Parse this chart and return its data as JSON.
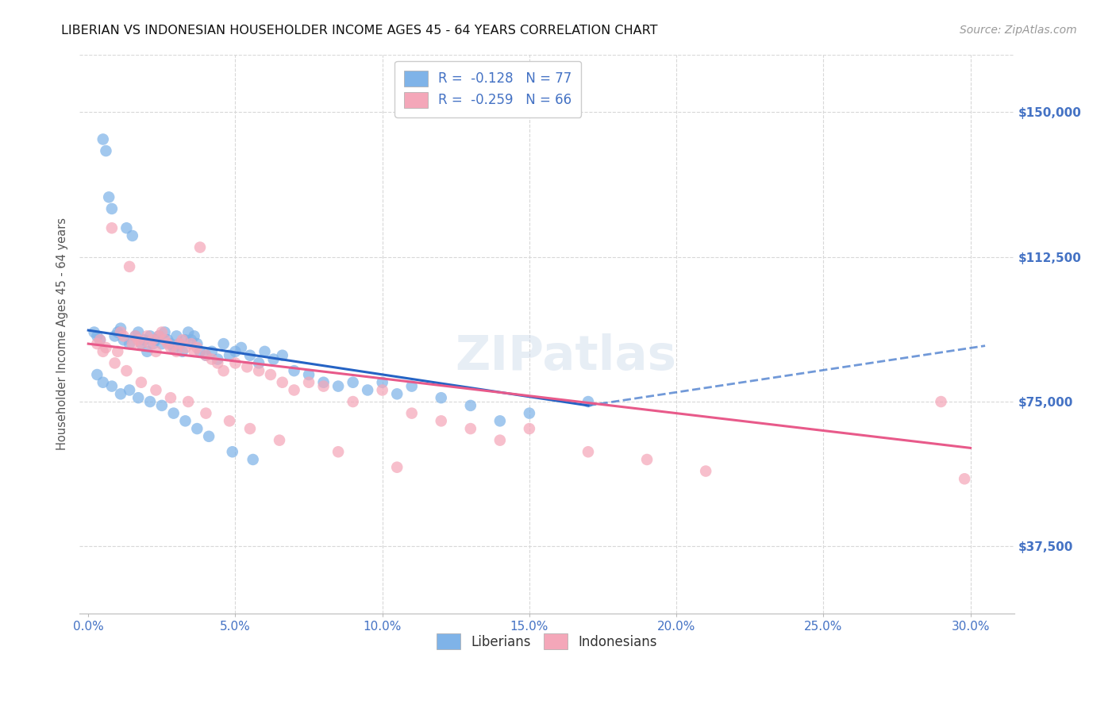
{
  "title": "LIBERIAN VS INDONESIAN HOUSEHOLDER INCOME AGES 45 - 64 YEARS CORRELATION CHART",
  "source": "Source: ZipAtlas.com",
  "ylabel": "Householder Income Ages 45 - 64 years",
  "xlabel_ticks": [
    "0.0%",
    "5.0%",
    "10.0%",
    "15.0%",
    "20.0%",
    "25.0%",
    "30.0%"
  ],
  "xlabel_vals": [
    0.0,
    5.0,
    10.0,
    15.0,
    20.0,
    25.0,
    30.0
  ],
  "ylim": [
    20000,
    165000
  ],
  "xlim": [
    -0.3,
    31.5
  ],
  "yticks": [
    37500,
    75000,
    112500,
    150000
  ],
  "ytick_labels": [
    "$37,500",
    "$75,000",
    "$112,500",
    "$150,000"
  ],
  "legend_R_liberian": "-0.128",
  "legend_N_liberian": "77",
  "legend_R_indonesian": "-0.259",
  "legend_N_indonesian": "66",
  "color_liberian": "#7fb3e8",
  "color_indonesian": "#f4a7b9",
  "color_line_liberian": "#2563c4",
  "color_line_indonesian": "#e85a8a",
  "color_title": "#111111",
  "color_source": "#999999",
  "color_axis_label": "#555555",
  "color_ytick": "#4472c4",
  "color_xtick": "#4472c4",
  "watermark": "ZIPatlas",
  "background_color": "#ffffff",
  "grid_color": "#d8d8d8",
  "liberian_x": [
    0.2,
    0.3,
    0.4,
    0.5,
    0.6,
    0.7,
    0.8,
    0.9,
    1.0,
    1.1,
    1.2,
    1.3,
    1.4,
    1.5,
    1.6,
    1.7,
    1.8,
    1.9,
    2.0,
    2.1,
    2.2,
    2.3,
    2.4,
    2.5,
    2.6,
    2.7,
    2.8,
    2.9,
    3.0,
    3.1,
    3.2,
    3.3,
    3.4,
    3.5,
    3.6,
    3.7,
    3.8,
    4.0,
    4.2,
    4.4,
    4.6,
    4.8,
    5.0,
    5.2,
    5.5,
    5.8,
    6.0,
    6.3,
    6.6,
    7.0,
    7.5,
    8.0,
    8.5,
    9.0,
    9.5,
    10.0,
    10.5,
    11.0,
    12.0,
    13.0,
    14.0,
    15.0,
    0.3,
    0.5,
    0.8,
    1.1,
    1.4,
    1.7,
    2.1,
    2.5,
    2.9,
    3.3,
    3.7,
    4.1,
    4.9,
    5.6,
    17.0
  ],
  "liberian_y": [
    93000,
    92000,
    91000,
    143000,
    140000,
    128000,
    125000,
    92000,
    93000,
    94000,
    91000,
    120000,
    90000,
    118000,
    92000,
    93000,
    90000,
    91000,
    88000,
    92000,
    90000,
    91000,
    92000,
    90000,
    93000,
    91000,
    90000,
    89000,
    92000,
    90000,
    88000,
    91000,
    93000,
    91000,
    92000,
    90000,
    88000,
    87000,
    88000,
    86000,
    90000,
    87000,
    88000,
    89000,
    87000,
    85000,
    88000,
    86000,
    87000,
    83000,
    82000,
    80000,
    79000,
    80000,
    78000,
    80000,
    77000,
    79000,
    76000,
    74000,
    70000,
    72000,
    82000,
    80000,
    79000,
    77000,
    78000,
    76000,
    75000,
    74000,
    72000,
    70000,
    68000,
    66000,
    62000,
    60000,
    75000
  ],
  "indonesian_x": [
    0.3,
    0.4,
    0.6,
    0.8,
    1.0,
    1.1,
    1.2,
    1.4,
    1.5,
    1.6,
    1.7,
    1.8,
    2.0,
    2.1,
    2.2,
    2.3,
    2.4,
    2.5,
    2.6,
    2.7,
    2.8,
    3.0,
    3.1,
    3.2,
    3.3,
    3.5,
    3.6,
    3.7,
    3.8,
    4.0,
    4.2,
    4.4,
    4.6,
    5.0,
    5.4,
    5.8,
    6.2,
    6.6,
    7.0,
    7.5,
    8.0,
    9.0,
    10.0,
    11.0,
    12.0,
    13.0,
    14.0,
    15.0,
    17.0,
    19.0,
    21.0,
    29.0,
    29.8,
    0.5,
    0.9,
    1.3,
    1.8,
    2.3,
    2.8,
    3.4,
    4.0,
    4.8,
    5.5,
    6.5,
    8.5,
    10.5
  ],
  "indonesian_y": [
    90000,
    91000,
    89000,
    120000,
    88000,
    93000,
    92000,
    110000,
    90000,
    92000,
    91000,
    90000,
    92000,
    90000,
    91000,
    88000,
    92000,
    93000,
    91000,
    90000,
    89000,
    88000,
    90000,
    91000,
    89000,
    90000,
    88000,
    89000,
    115000,
    87000,
    86000,
    85000,
    83000,
    85000,
    84000,
    83000,
    82000,
    80000,
    78000,
    80000,
    79000,
    75000,
    78000,
    72000,
    70000,
    68000,
    65000,
    68000,
    62000,
    60000,
    57000,
    75000,
    55000,
    88000,
    85000,
    83000,
    80000,
    78000,
    76000,
    75000,
    72000,
    70000,
    68000,
    65000,
    62000,
    58000
  ]
}
